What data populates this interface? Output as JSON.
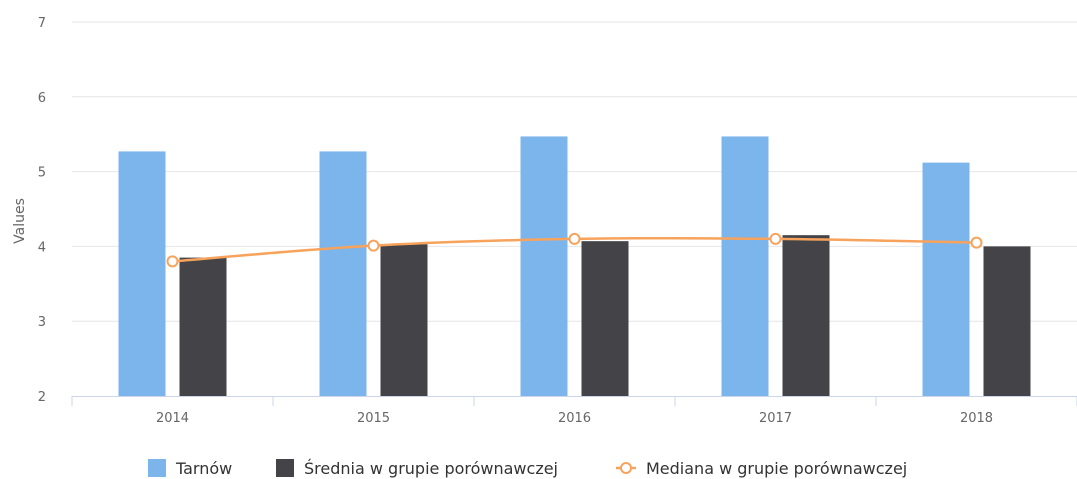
{
  "chart_data": {
    "type": "bar",
    "title": "",
    "xlabel": "",
    "ylabel": "Values",
    "categories": [
      "2014",
      "2015",
      "2016",
      "2017",
      "2018"
    ],
    "ylim": [
      2,
      7
    ],
    "yticks": [
      2,
      3,
      4,
      5,
      6,
      7
    ],
    "grid": true,
    "legend_position": "bottom",
    "series": [
      {
        "name": "Tarnów",
        "kind": "bar",
        "color": "#7cb5ec",
        "values": [
          5.27,
          5.27,
          5.47,
          5.47,
          5.12
        ]
      },
      {
        "name": "Średnia w grupie porównawczej",
        "kind": "bar",
        "color": "#434348",
        "values": [
          3.85,
          4.03,
          4.07,
          4.15,
          4.0
        ]
      },
      {
        "name": "Mediana w grupie porównawczej",
        "kind": "line",
        "color": "#f7a35c",
        "values": [
          3.8,
          4.01,
          4.1,
          4.1,
          4.05
        ]
      }
    ]
  }
}
